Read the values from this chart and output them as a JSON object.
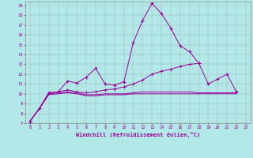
{
  "title": "",
  "xlabel": "Windchill (Refroidissement éolien,°C)",
  "bg_color": "#b2e8e8",
  "line_color": "#990099",
  "grid_color": "#999999",
  "spine_color": "#888888",
  "xlim": [
    -0.5,
    23.5
  ],
  "ylim": [
    7,
    19.4
  ],
  "xticks": [
    0,
    1,
    2,
    3,
    4,
    5,
    6,
    7,
    8,
    9,
    10,
    11,
    12,
    13,
    14,
    15,
    16,
    17,
    18,
    19,
    20,
    21,
    22,
    23
  ],
  "yticks": [
    7,
    8,
    9,
    10,
    11,
    12,
    13,
    14,
    15,
    16,
    17,
    18,
    19
  ],
  "series0_x": [
    0,
    1,
    2,
    3,
    4,
    5,
    6,
    7,
    8,
    9,
    10,
    11,
    12,
    13,
    14,
    15,
    16,
    17,
    18,
    19,
    20,
    21,
    22
  ],
  "series0_y": [
    7.2,
    8.5,
    10.1,
    10.2,
    11.3,
    11.1,
    11.7,
    12.6,
    11.0,
    10.9,
    11.2,
    15.2,
    17.5,
    19.2,
    18.2,
    16.7,
    14.9,
    14.3,
    13.1,
    11.0,
    11.5,
    12.0,
    10.2
  ],
  "series1_x": [
    0,
    1,
    2,
    3,
    4,
    5,
    6,
    7,
    8,
    9,
    10,
    11,
    12,
    13,
    14,
    15,
    16,
    17,
    18
  ],
  "series1_y": [
    7.2,
    8.5,
    10.1,
    10.2,
    10.4,
    10.2,
    10.1,
    10.2,
    10.4,
    10.5,
    10.7,
    11.0,
    11.4,
    12.0,
    12.3,
    12.5,
    12.8,
    13.0,
    13.1
  ],
  "series2_x": [
    0,
    1,
    2,
    3,
    4,
    5,
    6,
    7,
    8,
    9,
    10,
    11,
    12,
    13,
    14,
    15,
    16,
    17,
    18,
    19,
    20,
    21,
    22
  ],
  "series2_y": [
    7.2,
    8.5,
    10.0,
    10.1,
    10.2,
    10.1,
    9.9,
    9.9,
    10.0,
    10.0,
    10.0,
    10.1,
    10.2,
    10.2,
    10.2,
    10.2,
    10.2,
    10.2,
    10.1,
    10.1,
    10.1,
    10.1,
    10.1
  ],
  "series3_x": [
    0,
    1,
    2,
    3,
    4,
    5,
    6,
    7,
    8,
    9,
    10,
    11,
    12,
    13,
    14,
    15,
    16,
    17,
    18,
    19,
    20,
    21,
    22
  ],
  "series3_y": [
    7.2,
    8.5,
    9.9,
    10.0,
    10.1,
    10.0,
    9.8,
    9.8,
    9.9,
    9.9,
    9.9,
    10.0,
    10.0,
    10.0,
    10.0,
    10.0,
    10.0,
    10.0,
    10.0,
    10.0,
    10.0,
    10.0,
    10.0
  ]
}
